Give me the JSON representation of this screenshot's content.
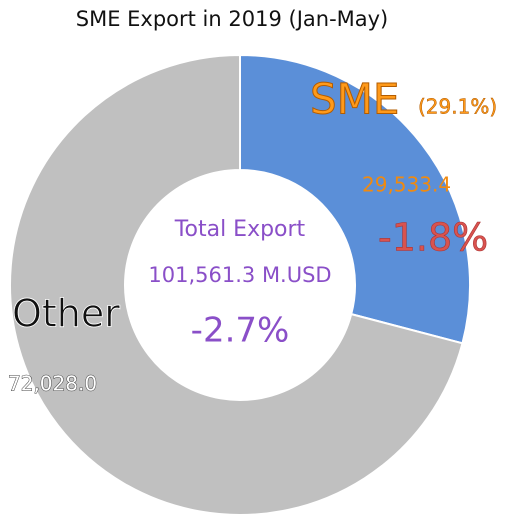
{
  "chart_data": {
    "type": "donut",
    "title": "SME Export in 2019 (Jan-May)",
    "categories": [
      "SME",
      "Other"
    ],
    "values": [
      29533.4,
      72028.0
    ],
    "value_labels": [
      "29,533.4",
      "72,028.0"
    ],
    "colors": [
      "#5b8fd8",
      "#c0c0c0"
    ],
    "annotations": {
      "sme_share": "(29.1%)",
      "sme_growth": "-1.8%",
      "center_title": "Total Export",
      "center_total": "101,561.3 M.USD",
      "center_growth": "-2.7%"
    }
  }
}
